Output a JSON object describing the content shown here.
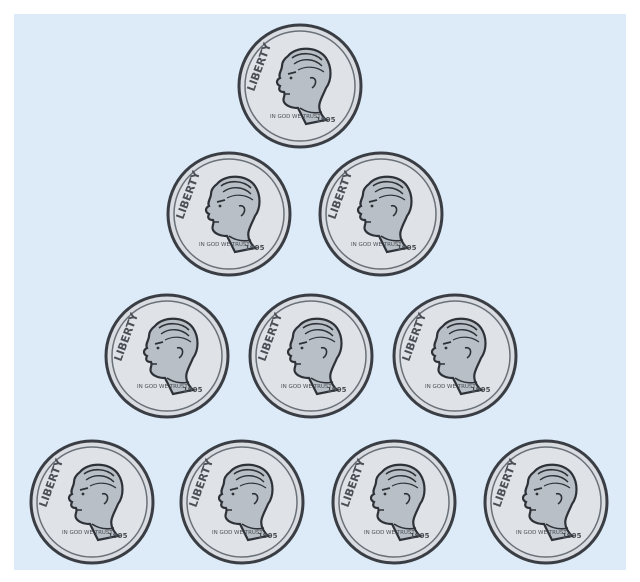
{
  "background_color": "#dcebf7",
  "coin": {
    "icon": "dime-coin-icon",
    "rim_text": "LIBERTY",
    "motto": "IN GOD WE TRUST",
    "year": "1995",
    "metal_color": "#d9dde2",
    "edge_color": "#3a3e44"
  },
  "arrangement": {
    "rows": [
      1,
      2,
      3,
      4
    ],
    "total_coins": 10
  }
}
